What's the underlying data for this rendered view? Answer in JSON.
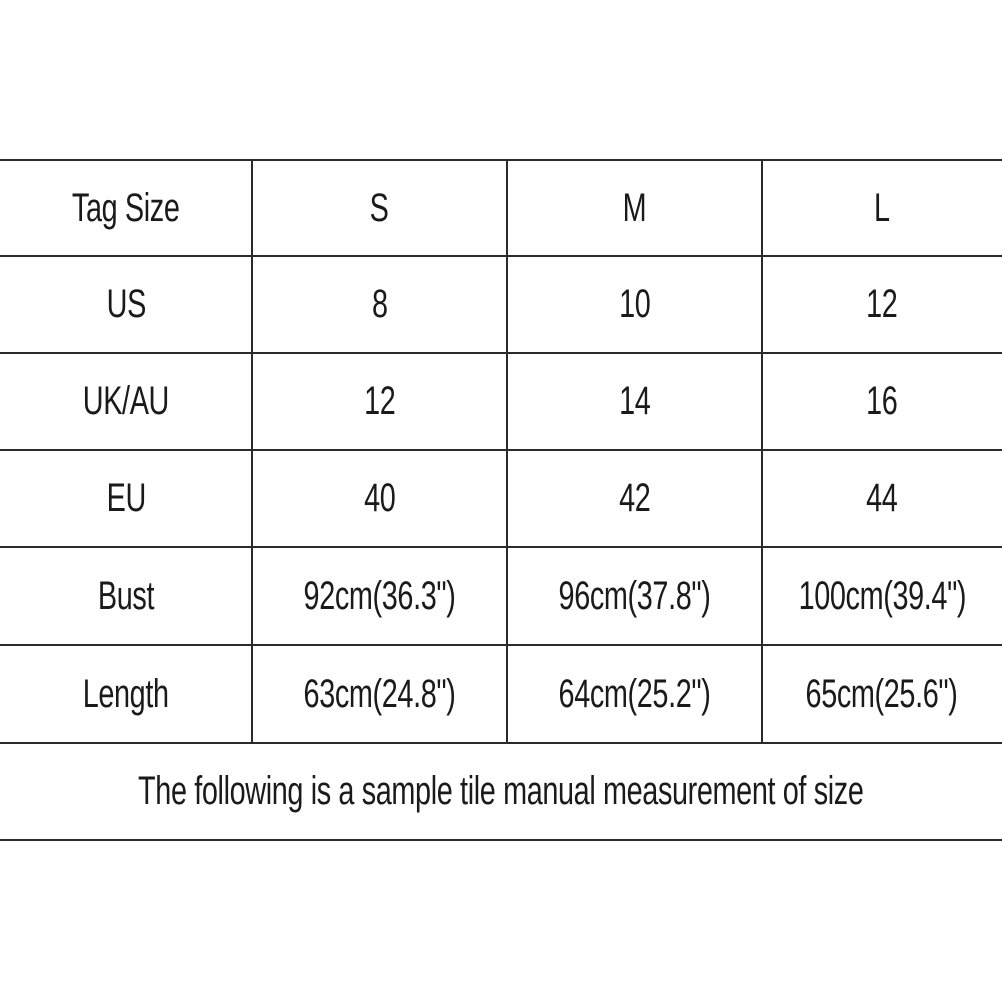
{
  "table": {
    "header": [
      "Tag Size",
      "S",
      "M",
      "L"
    ],
    "rows": [
      [
        "US",
        "8",
        "10",
        "12"
      ],
      [
        "UK/AU",
        "12",
        "14",
        "16"
      ],
      [
        "EU",
        "40",
        "42",
        "44"
      ],
      [
        "Bust",
        "92cm(36.3\")",
        "96cm(37.8\")",
        "100cm(39.4\")"
      ],
      [
        "Length",
        "63cm(24.8\")",
        "64cm(25.2\")",
        "65cm(25.6\")"
      ]
    ],
    "note": "The following is a sample tile manual measurement of size"
  }
}
